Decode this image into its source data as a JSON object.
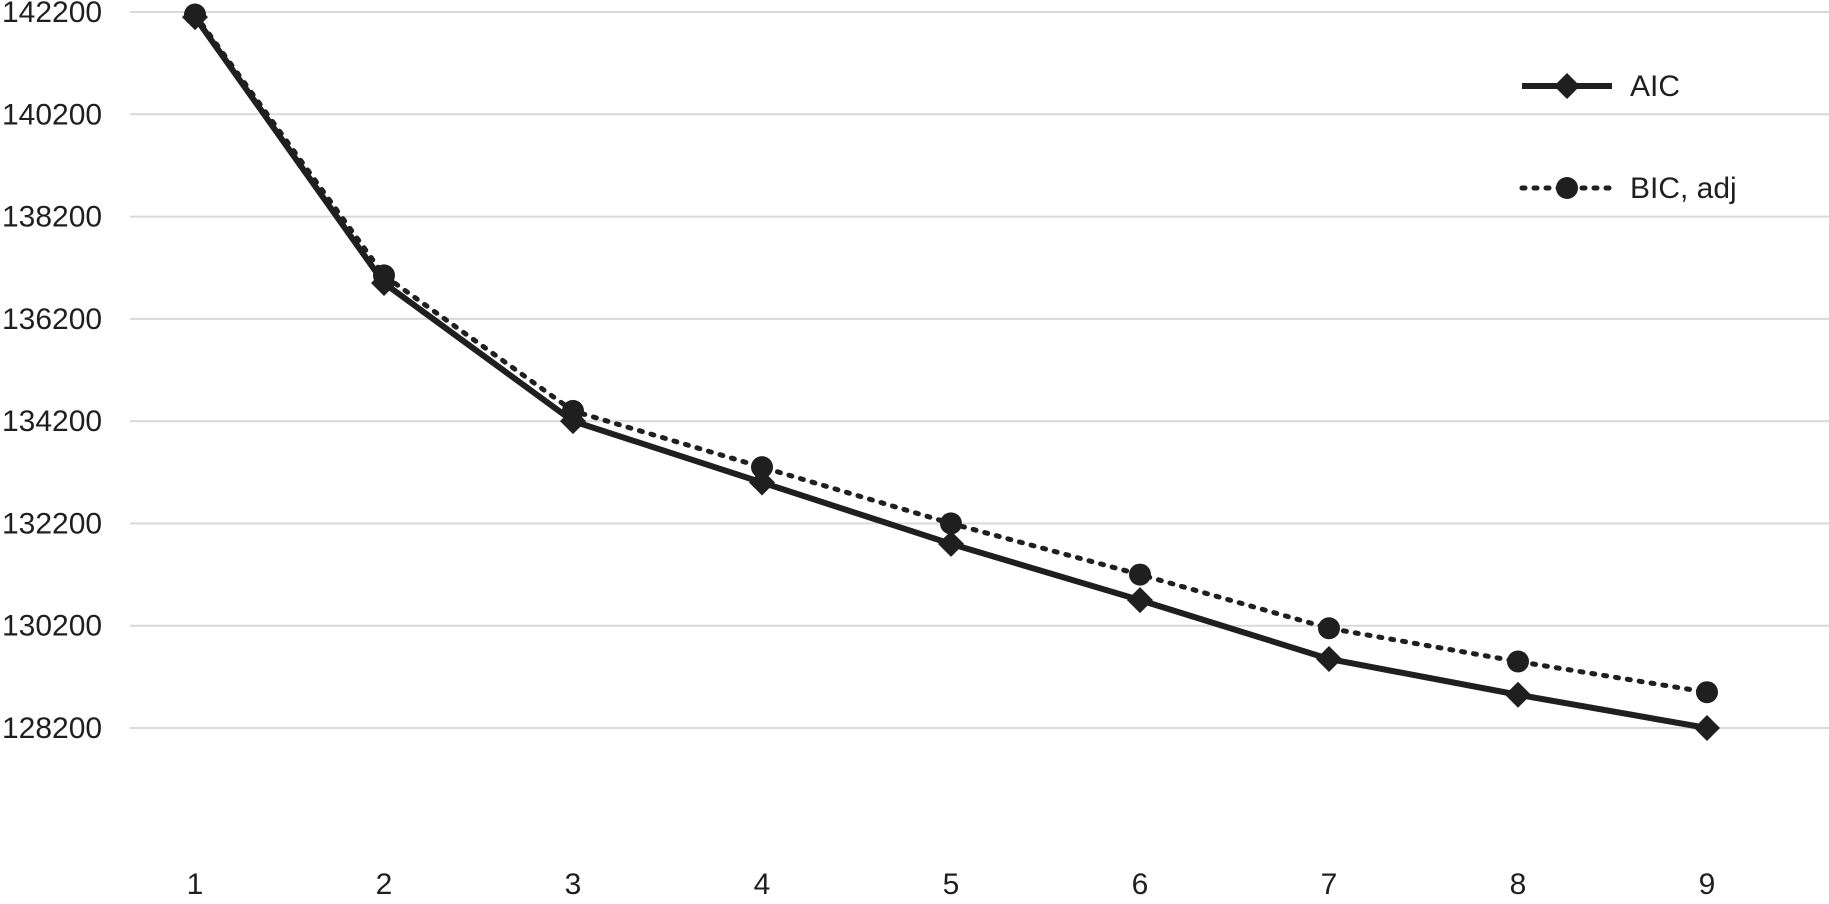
{
  "chart_data": {
    "type": "line",
    "title": "",
    "xlabel": "",
    "ylabel": "",
    "categories": [
      "1",
      "2",
      "3",
      "4",
      "5",
      "6",
      "7",
      "8",
      "9"
    ],
    "ylim": [
      128200,
      142200
    ],
    "y_ticks": [
      "142200",
      "140200",
      "138200",
      "136200",
      "134200",
      "132200",
      "130200",
      "128200"
    ],
    "grid": "horizontal",
    "legend_position": "top-right",
    "series": [
      {
        "name": "AIC",
        "line_style": "solid",
        "marker": "diamond",
        "color": "#1f1f1f",
        "values": [
          142100,
          136900,
          134200,
          133000,
          131800,
          130700,
          129550,
          128850,
          128200
        ]
      },
      {
        "name": "BIC, adj",
        "line_style": "dotted",
        "marker": "circle",
        "color": "#1f1f1f",
        "values": [
          142150,
          137050,
          134400,
          133300,
          132200,
          131200,
          130150,
          129500,
          128900
        ]
      }
    ]
  }
}
